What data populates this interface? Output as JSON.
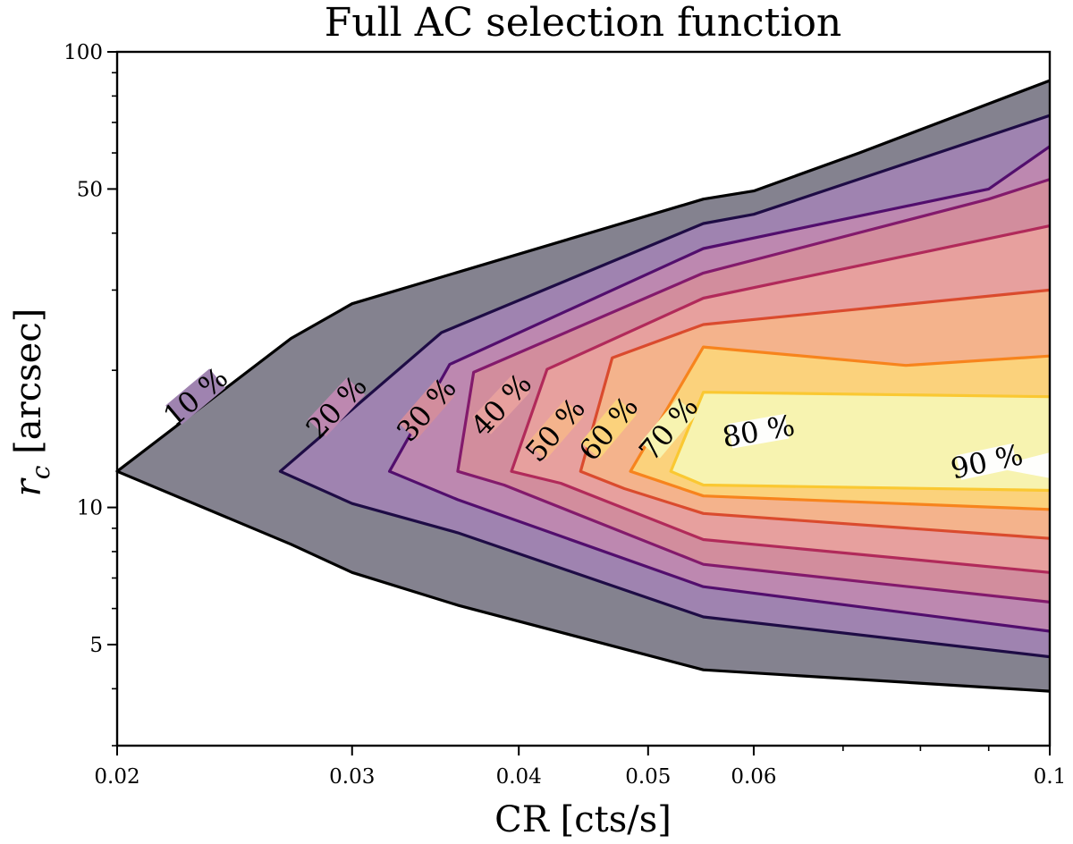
{
  "chart_data": {
    "type": "contour",
    "title": "Full AC selection function",
    "xlabel": "CR [cts/s]",
    "ylabel_symbol": "r",
    "ylabel_subscript": "c",
    "ylabel_unit": " [arcsec]",
    "xscale": "log",
    "yscale": "log",
    "xlim": [
      0.02,
      0.1
    ],
    "ylim": [
      3,
      100
    ],
    "xticks": [
      {
        "value": 0.02,
        "label": "0.02"
      },
      {
        "value": 0.03,
        "label": "0.03"
      },
      {
        "value": 0.04,
        "label": "0.04"
      },
      {
        "value": 0.05,
        "label": "0.05"
      },
      {
        "value": 0.06,
        "label": "0.06"
      },
      {
        "value": 0.1,
        "label": "0.1"
      }
    ],
    "yticks": [
      {
        "value": 5,
        "label": "5"
      },
      {
        "value": 10,
        "label": "10"
      },
      {
        "value": 50,
        "label": "50"
      },
      {
        "value": 100,
        "label": "100"
      }
    ],
    "xminor": [
      0.07,
      0.08,
      0.09
    ],
    "yminor": [
      3,
      4,
      6,
      7,
      8,
      9,
      20,
      30,
      40,
      60,
      70,
      80,
      90
    ],
    "levels": [
      {
        "level": 10,
        "label": "10 %",
        "fill": "#84828f",
        "line": "#000000",
        "label_at": [
          0.0229,
          17.5
        ],
        "label_angle": -40,
        "points": [
          [
            0.1,
            86.5
          ],
          [
            0.072,
            60
          ],
          [
            0.06,
            49.5
          ],
          [
            0.055,
            47.5
          ],
          [
            0.03,
            28
          ],
          [
            0.027,
            23.5
          ],
          [
            0.02,
            12
          ],
          [
            0.027,
            8.3
          ],
          [
            0.03,
            7.2
          ],
          [
            0.036,
            6.1
          ],
          [
            0.055,
            4.4
          ],
          [
            0.1,
            3.95
          ]
        ]
      },
      {
        "level": 20,
        "label": "20 %",
        "fill": "#9f83b0",
        "line": "#1e0c45",
        "label_at": [
          0.0292,
          16.6
        ],
        "label_angle": -47,
        "points": [
          [
            0.1,
            72.5
          ],
          [
            0.06,
            44
          ],
          [
            0.055,
            42
          ],
          [
            0.035,
            24.2
          ],
          [
            0.0265,
            12
          ],
          [
            0.03,
            10.2
          ],
          [
            0.036,
            8.8
          ],
          [
            0.055,
            5.75
          ],
          [
            0.1,
            4.7
          ]
        ]
      },
      {
        "level": 30,
        "label": "30 %",
        "fill": "#bd88b0",
        "line": "#520e6d",
        "label_at": [
          0.0341,
          16.4
        ],
        "label_angle": -49,
        "points": [
          [
            0.1,
            62
          ],
          [
            0.09,
            50
          ],
          [
            0.055,
            37
          ],
          [
            0.0355,
            20.6
          ],
          [
            0.032,
            12
          ],
          [
            0.036,
            10.4
          ],
          [
            0.055,
            6.7
          ],
          [
            0.1,
            5.35
          ]
        ]
      },
      {
        "level": 40,
        "label": "40 %",
        "fill": "#d28d9d",
        "line": "#831a6c",
        "label_at": [
          0.0388,
          16.8
        ],
        "label_angle": -47,
        "points": [
          [
            0.1,
            52.5
          ],
          [
            0.09,
            47.5
          ],
          [
            0.055,
            32.7
          ],
          [
            0.037,
            19.8
          ],
          [
            0.036,
            12
          ],
          [
            0.039,
            11.2
          ],
          [
            0.055,
            7.5
          ],
          [
            0.1,
            6.2
          ]
        ]
      },
      {
        "level": 50,
        "label": "50 %",
        "fill": "#e7a09e",
        "line": "#b12a5a",
        "label_at": [
          0.0426,
          14.8
        ],
        "label_angle": -49,
        "points": [
          [
            0.1,
            41.5
          ],
          [
            0.055,
            28.8
          ],
          [
            0.042,
            20.1
          ],
          [
            0.0395,
            12
          ],
          [
            0.043,
            11.3
          ],
          [
            0.055,
            8.5
          ],
          [
            0.1,
            7.2
          ]
        ]
      },
      {
        "level": 60,
        "label": "60 %",
        "fill": "#f4b38c",
        "line": "#da4b2e",
        "label_at": [
          0.0467,
          14.9
        ],
        "label_angle": -50,
        "points": [
          [
            0.1,
            30
          ],
          [
            0.055,
            25.2
          ],
          [
            0.047,
            21.3
          ],
          [
            0.0445,
            12
          ],
          [
            0.048,
            11
          ],
          [
            0.055,
            9.7
          ],
          [
            0.1,
            8.55
          ]
        ]
      },
      {
        "level": 70,
        "label": "70 %",
        "fill": "#fbd27c",
        "line": "#f7841d",
        "label_at": [
          0.0518,
          14.9
        ],
        "label_angle": -50,
        "points": [
          [
            0.1,
            21.5
          ],
          [
            0.078,
            20.5
          ],
          [
            0.055,
            22.5
          ],
          [
            0.0485,
            12
          ],
          [
            0.055,
            10.6
          ],
          [
            0.1,
            9.9
          ]
        ]
      },
      {
        "level": 80,
        "label": "80 %",
        "fill": "#f7f3b0",
        "line": "#fac832",
        "label_at": [
          0.0605,
          14.7
        ],
        "label_angle": -10,
        "points": [
          [
            0.1,
            17.5
          ],
          [
            0.055,
            17.9
          ],
          [
            0.052,
            12
          ],
          [
            0.055,
            11.2
          ],
          [
            0.1,
            10.9
          ]
        ]
      },
      {
        "level": 90,
        "label": "90 %",
        "fill": "#fefefc",
        "line": "none",
        "label_at": [
          0.0897,
          12.6
        ],
        "label_angle": -12,
        "points": [
          [
            0.1,
            13.2
          ],
          [
            0.0905,
            12.25
          ],
          [
            0.1,
            11.6
          ]
        ]
      }
    ]
  }
}
